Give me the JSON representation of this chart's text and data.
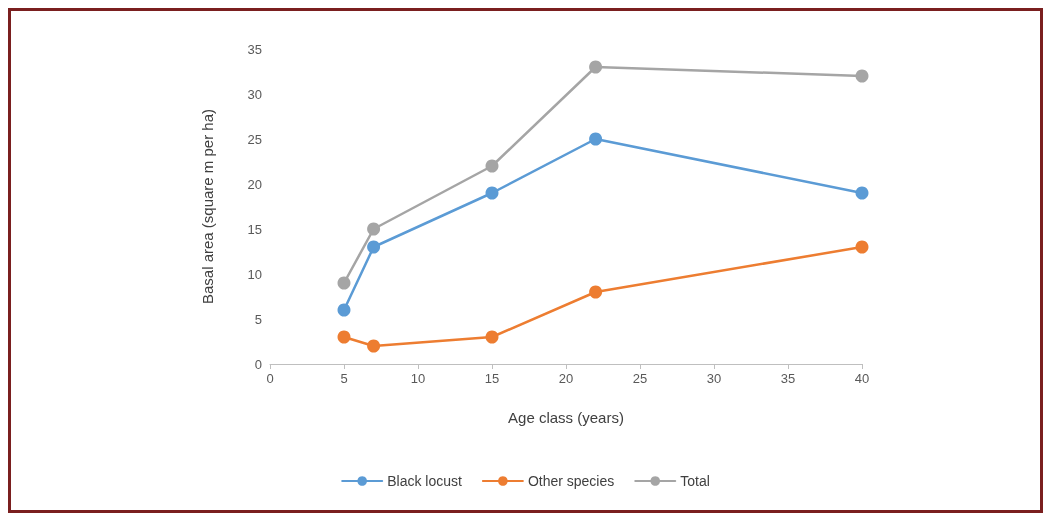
{
  "chart_data": {
    "type": "line",
    "xlabel": "Age class (years)",
    "ylabel": "Basal area (square m per ha)",
    "x": [
      5,
      7,
      15,
      22,
      40
    ],
    "series": [
      {
        "name": "Black locust",
        "color": "#5b9bd5",
        "values": [
          6,
          13,
          19,
          25,
          19
        ]
      },
      {
        "name": "Other species",
        "color": "#ed7d31",
        "values": [
          3,
          2,
          3,
          8,
          13
        ]
      },
      {
        "name": "Total",
        "color": "#a5a5a5",
        "values": [
          9,
          15,
          22,
          33,
          32
        ]
      }
    ],
    "xlim": [
      0,
      40
    ],
    "xticks": [
      0,
      5,
      10,
      15,
      20,
      25,
      30,
      35,
      40
    ],
    "ylim": [
      0,
      35
    ],
    "yticks": [
      0,
      5,
      10,
      15,
      20,
      25,
      30,
      35
    ],
    "grid": false,
    "legend": "bottom",
    "marker": "circle",
    "line_style": "solid"
  }
}
